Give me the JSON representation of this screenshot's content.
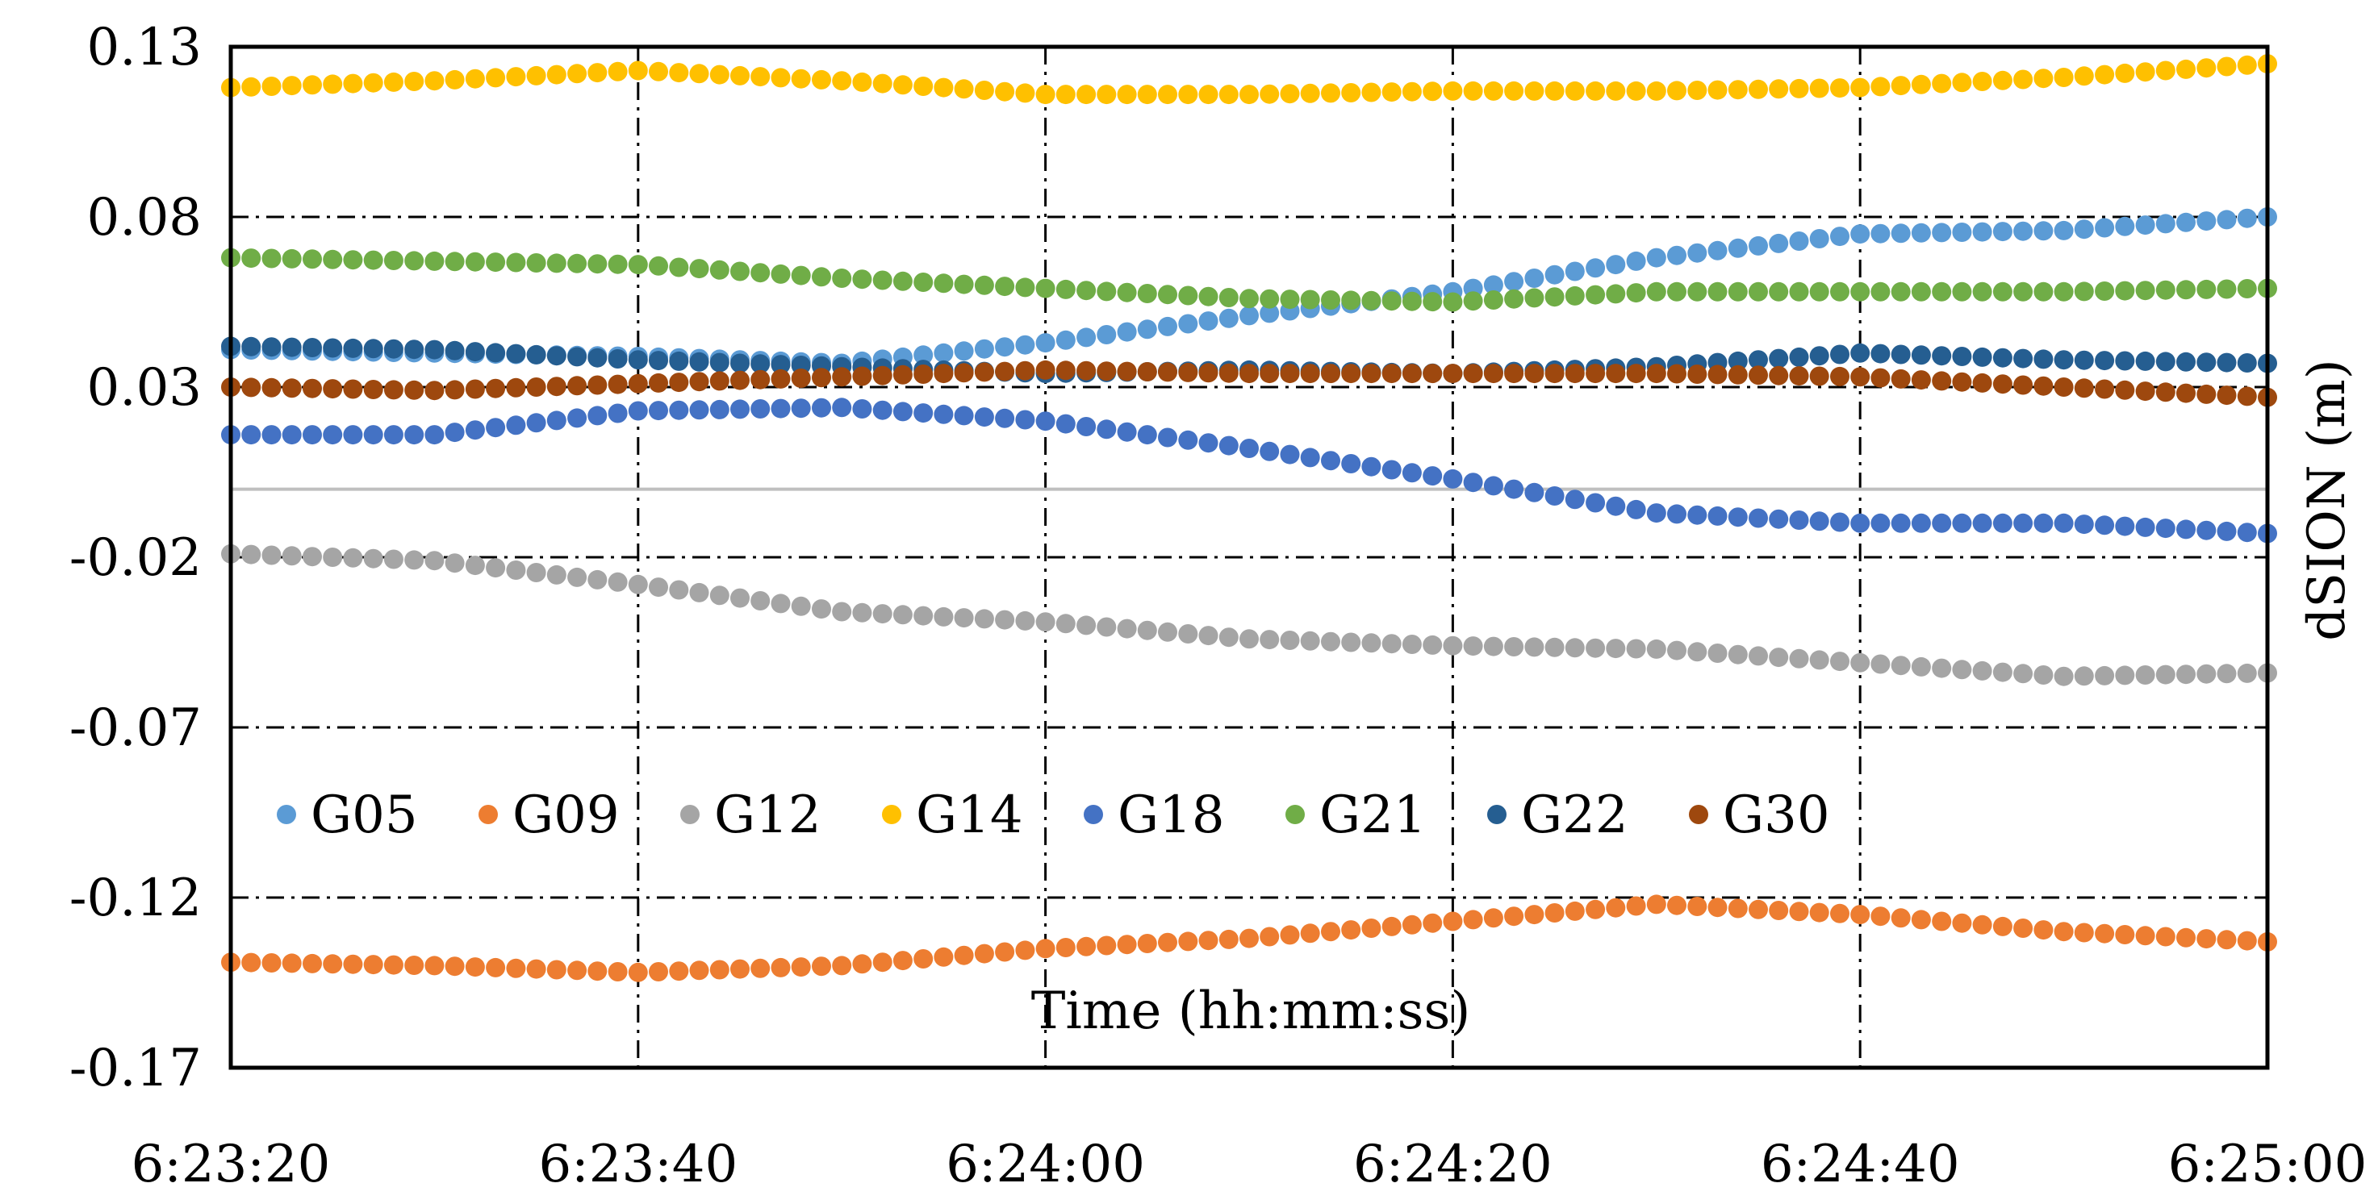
{
  "chart_data": {
    "type": "scatter",
    "title": "",
    "xlabel": "Time (hh:mm:ss)",
    "ylabel": "dSION (m)",
    "xlim": [
      0,
      100
    ],
    "ylim": [
      -0.17,
      0.13
    ],
    "xticks": [
      0,
      20,
      40,
      60,
      80,
      100
    ],
    "xtick_labels": [
      "6:23:20",
      "6:23:40",
      "6:24:00",
      "6:24:20",
      "6:24:40",
      "6:25:00"
    ],
    "yticks": [
      0.13,
      0.08,
      0.03,
      -0.02,
      -0.07,
      -0.12,
      -0.17
    ],
    "ytick_labels": [
      "0.13",
      "0.08",
      "0.03",
      "-0.02",
      "-0.07",
      "-0.12",
      "-0.17"
    ],
    "grid": "dash-dot",
    "zero_line": true,
    "legend_position": "lower-left",
    "series": [
      {
        "name": "G05",
        "color": "#5B9BD5",
        "points": [
          [
            0,
            0.041
          ],
          [
            10,
            0.04
          ],
          [
            20,
            0.039
          ],
          [
            30,
            0.037
          ],
          [
            40,
            0.043
          ],
          [
            50,
            0.051
          ],
          [
            60,
            0.058
          ],
          [
            70,
            0.068
          ],
          [
            80,
            0.075
          ],
          [
            90,
            0.076
          ],
          [
            100,
            0.08
          ]
        ]
      },
      {
        "name": "G09",
        "color": "#ED7D31",
        "points": [
          [
            0,
            -0.139
          ],
          [
            10,
            -0.14
          ],
          [
            20,
            -0.142
          ],
          [
            30,
            -0.14
          ],
          [
            40,
            -0.135
          ],
          [
            50,
            -0.132
          ],
          [
            60,
            -0.127
          ],
          [
            70,
            -0.122
          ],
          [
            80,
            -0.125
          ],
          [
            90,
            -0.13
          ],
          [
            100,
            -0.133
          ]
        ]
      },
      {
        "name": "G12",
        "color": "#A5A5A5",
        "points": [
          [
            0,
            -0.019
          ],
          [
            10,
            -0.021
          ],
          [
            20,
            -0.028
          ],
          [
            30,
            -0.036
          ],
          [
            40,
            -0.039
          ],
          [
            50,
            -0.044
          ],
          [
            60,
            -0.046
          ],
          [
            70,
            -0.047
          ],
          [
            80,
            -0.051
          ],
          [
            90,
            -0.055
          ],
          [
            100,
            -0.054
          ]
        ]
      },
      {
        "name": "G14",
        "color": "#FFC000",
        "points": [
          [
            0,
            0.118
          ],
          [
            10,
            0.12
          ],
          [
            20,
            0.123
          ],
          [
            30,
            0.12
          ],
          [
            40,
            0.116
          ],
          [
            50,
            0.116
          ],
          [
            60,
            0.117
          ],
          [
            70,
            0.117
          ],
          [
            80,
            0.118
          ],
          [
            90,
            0.121
          ],
          [
            100,
            0.125
          ]
        ]
      },
      {
        "name": "G18",
        "color": "#4472C4",
        "points": [
          [
            0,
            0.016
          ],
          [
            10,
            0.016
          ],
          [
            20,
            0.023
          ],
          [
            30,
            0.024
          ],
          [
            40,
            0.02
          ],
          [
            50,
            0.012
          ],
          [
            60,
            0.003
          ],
          [
            70,
            -0.007
          ],
          [
            80,
            -0.01
          ],
          [
            90,
            -0.01
          ],
          [
            100,
            -0.013
          ]
        ]
      },
      {
        "name": "G21",
        "color": "#70AD47",
        "points": [
          [
            0,
            0.068
          ],
          [
            10,
            0.067
          ],
          [
            20,
            0.066
          ],
          [
            30,
            0.062
          ],
          [
            40,
            0.059
          ],
          [
            50,
            0.056
          ],
          [
            60,
            0.055
          ],
          [
            70,
            0.058
          ],
          [
            80,
            0.058
          ],
          [
            90,
            0.058
          ],
          [
            100,
            0.059
          ]
        ]
      },
      {
        "name": "G22",
        "color": "#255E91",
        "points": [
          [
            0,
            0.042
          ],
          [
            10,
            0.041
          ],
          [
            20,
            0.038
          ],
          [
            30,
            0.036
          ],
          [
            40,
            0.034
          ],
          [
            50,
            0.035
          ],
          [
            60,
            0.034
          ],
          [
            70,
            0.036
          ],
          [
            80,
            0.04
          ],
          [
            90,
            0.038
          ],
          [
            100,
            0.037
          ]
        ]
      },
      {
        "name": "G30",
        "color": "#9E480E",
        "points": [
          [
            0,
            0.03
          ],
          [
            10,
            0.029
          ],
          [
            20,
            0.031
          ],
          [
            30,
            0.033
          ],
          [
            40,
            0.035
          ],
          [
            50,
            0.034
          ],
          [
            60,
            0.034
          ],
          [
            70,
            0.034
          ],
          [
            80,
            0.033
          ],
          [
            90,
            0.03
          ],
          [
            100,
            0.027
          ]
        ]
      }
    ]
  }
}
